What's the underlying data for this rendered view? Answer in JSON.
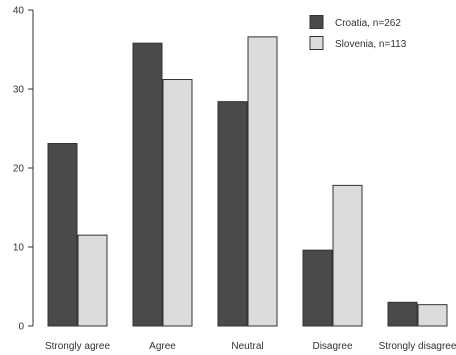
{
  "chart_data": {
    "type": "bar",
    "categories": [
      "Strongly agree",
      "Agree",
      "Neutral",
      "Disagree",
      "Strongly disagree"
    ],
    "series": [
      {
        "name": "Croatia, n=262",
        "values": [
          23.1,
          35.8,
          28.4,
          9.6,
          3.0
        ],
        "color": "#4a4a4a"
      },
      {
        "name": "Slovenia, n=113",
        "values": [
          11.5,
          31.2,
          36.6,
          17.8,
          2.7
        ],
        "color": "#dcdcdc"
      }
    ],
    "title": "",
    "xlabel": "",
    "ylabel": "",
    "ylim": [
      0,
      40
    ],
    "yticks": [
      0,
      10,
      20,
      30,
      40
    ],
    "grid": false,
    "legend_position": "top-right"
  }
}
